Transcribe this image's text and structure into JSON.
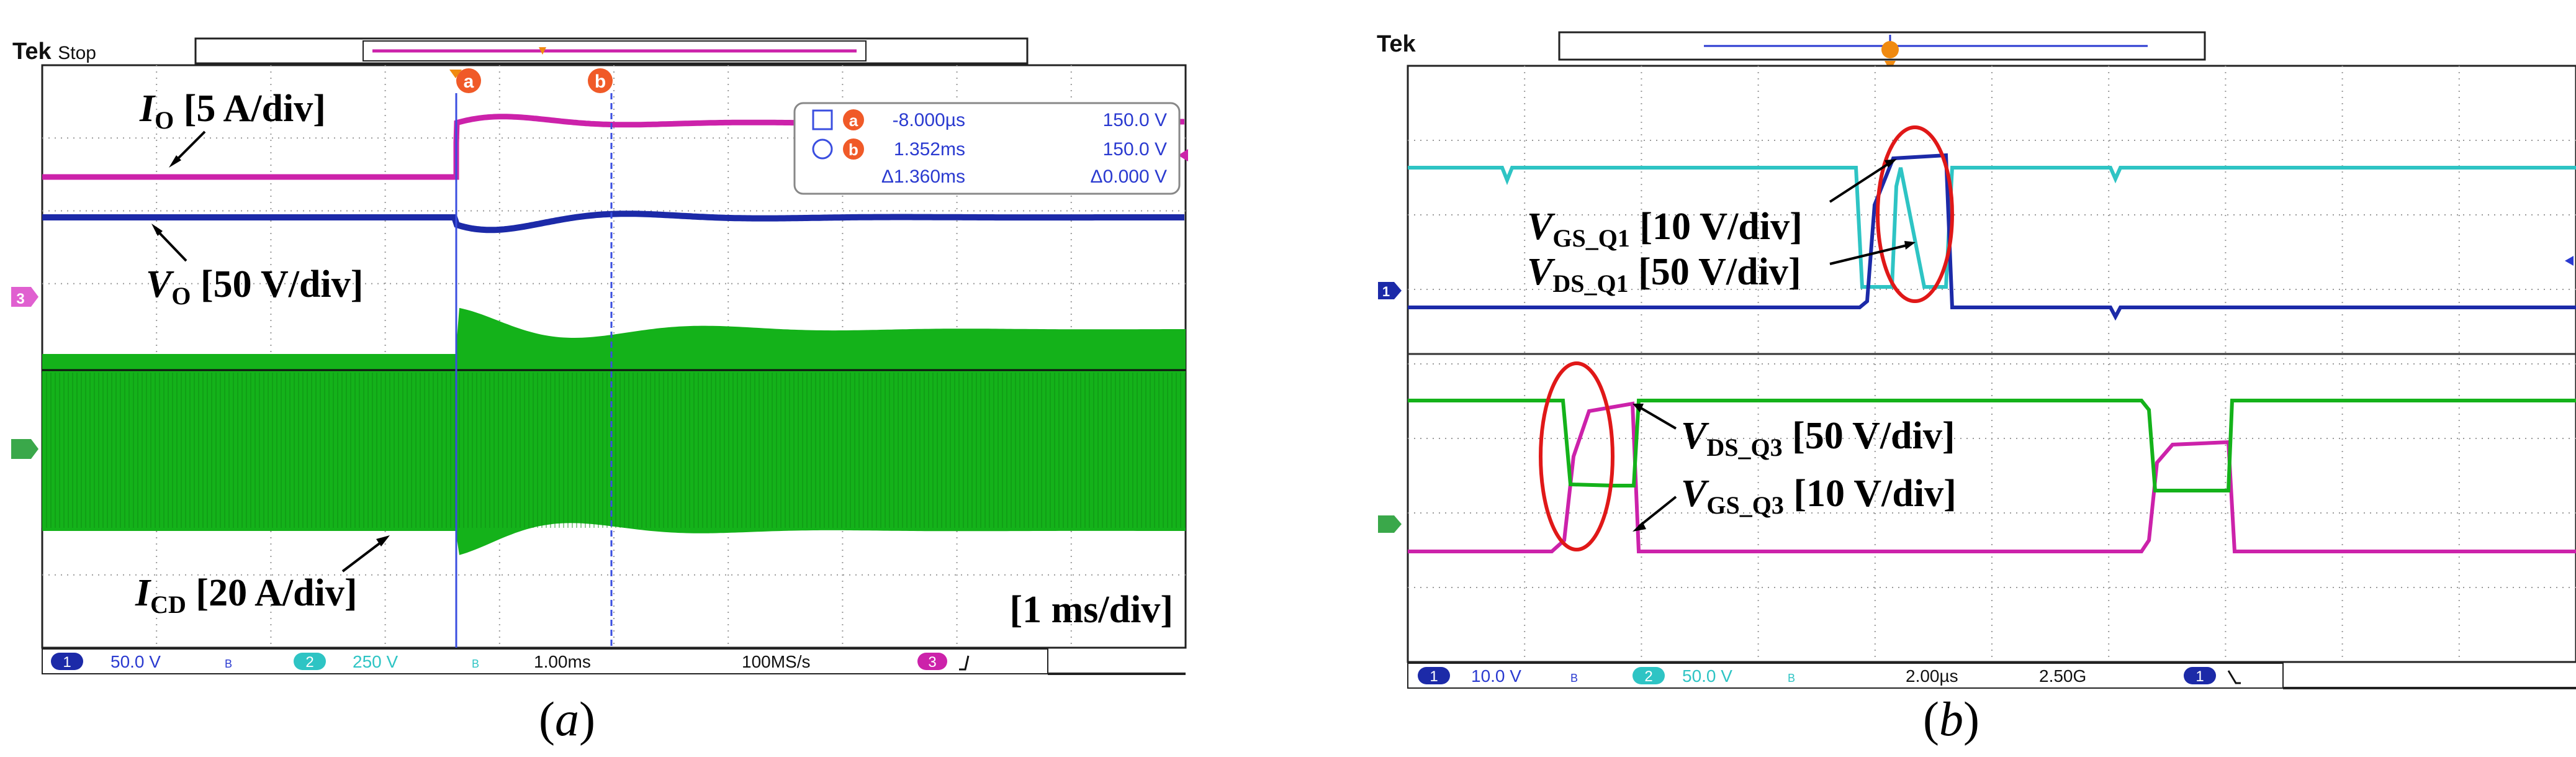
{
  "panel_a": {
    "caption_open": "(",
    "caption_letter": "a",
    "caption_close": ")",
    "brand": "Tek",
    "run_state": "Stop",
    "markers": [
      "a",
      "b"
    ],
    "cursor_readout": {
      "rows": [
        {
          "marker": "a",
          "time": "-8.000µs",
          "value": "150.0 V"
        },
        {
          "marker": "b",
          "time": "1.352ms",
          "value": "150.0 V"
        },
        {
          "marker": "",
          "time": "Δ1.360ms",
          "value": "Δ0.000 V"
        }
      ]
    },
    "annotations": [
      {
        "main": "I",
        "sub": "O",
        "rest": " [5 A/div]"
      },
      {
        "main": "V",
        "sub": "O",
        "rest": " [50 V/div]"
      },
      {
        "main": "I",
        "sub": "CD",
        "rest": " [20 A/div]"
      },
      {
        "main": "",
        "sub": "",
        "rest": "[1 ms/div]"
      }
    ],
    "status_bar": {
      "ch1_num": "1",
      "ch1_scale": "50.0 V",
      "ch2_num": "2",
      "ch2_scale": "250 V",
      "timebase": "1.00ms",
      "sample_rate": "100MS/s",
      "ch3_num": "3"
    }
  },
  "panel_b": {
    "caption_open": "(",
    "caption_letter": "b",
    "caption_close": ")",
    "brand": "Tek",
    "annotations": [
      {
        "main": "V",
        "sub": "GS_Q1",
        "rest": " [10 V/div]"
      },
      {
        "main": "V",
        "sub": "DS_Q1",
        "rest": " [50 V/div]"
      },
      {
        "main": "V",
        "sub": "DS_Q3",
        "rest": " [50 V/div]"
      },
      {
        "main": "V",
        "sub": "GS_Q3",
        "rest": " [10 V/div]"
      }
    ],
    "status_bar": {
      "ch1_num": "1",
      "ch1_scale": "10.0 V",
      "ch2_num": "2",
      "ch2_scale": "50.0 V",
      "timebase": "2.00µs",
      "sample_rate": "2.50G",
      "trig_num": "1"
    }
  },
  "colors": {
    "magenta": "#cc22aa",
    "blue": "#1c2aa8",
    "green": "#14b21a",
    "cyan": "#2ec4c4",
    "grid": "#9a9a9a",
    "cursor": "#3a4ee0",
    "red": "#e01818"
  },
  "chart_data": [
    {
      "type": "line",
      "subtype": "oscilloscope",
      "divisions": {
        "x": 10,
        "y": 8
      },
      "time_per_div": "1 ms",
      "trigger_time_ms": 0,
      "x_range_ms": [
        -3.65,
        6.35
      ],
      "cursors_ms": [
        -0.008,
        1.352
      ],
      "series": [
        {
          "name": "IO",
          "scale": "5 A/div",
          "color": "#cc22aa",
          "waveform": "step_up_with_damped_overshoot",
          "level_before_div": 3.0,
          "level_after_div": 3.9
        },
        {
          "name": "VO",
          "scale": "50 V/div",
          "color": "#1c2aa8",
          "waveform": "dip_then_recover",
          "level_div": 2.35,
          "dip_div": -0.3
        },
        {
          "name": "ICD",
          "scale": "20 A/div",
          "color": "#14b21a",
          "waveform": "switching_envelope",
          "envelope_div_before": [
            -1.3,
            0.45
          ],
          "envelope_div_after": [
            -1.3,
            0.8
          ]
        }
      ]
    },
    {
      "type": "line",
      "subtype": "oscilloscope",
      "divisions": {
        "x": 10,
        "y": 8
      },
      "time_per_div": "2 µs",
      "series": [
        {
          "name": "VGS_Q1",
          "scale": "10 V/div",
          "color": "#1c2aa8"
        },
        {
          "name": "VDS_Q1",
          "scale": "50 V/div",
          "color": "#2ec4c4"
        },
        {
          "name": "VDS_Q3",
          "scale": "50 V/div",
          "color": "#14b21a"
        },
        {
          "name": "VGS_Q3",
          "scale": "10 V/div",
          "color": "#cc22aa"
        }
      ]
    }
  ]
}
